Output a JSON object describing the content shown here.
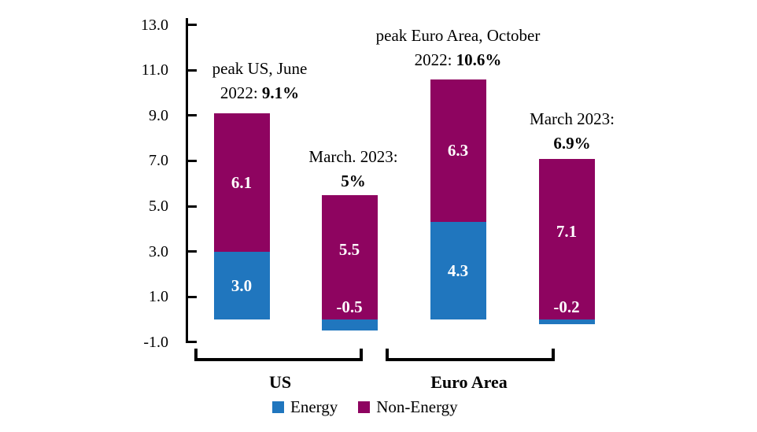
{
  "chart_data": {
    "type": "bar",
    "stacked": true,
    "ylim": [
      -1.0,
      13.0
    ],
    "ytick_values": [
      13.0,
      11.0,
      9.0,
      7.0,
      5.0,
      3.0,
      1.0,
      -1.0
    ],
    "ytick_labels": [
      "13.0",
      "11.0",
      "9.0",
      "7.0",
      "5.0",
      "3.0",
      "1.0",
      "-1.0"
    ],
    "grid": false,
    "bar_ids": [
      "us-peak",
      "us-march-2023",
      "euro-peak",
      "euro-march-2023"
    ],
    "series": [
      {
        "name": "Energy",
        "color": "#2076BE",
        "values": [
          3.0,
          -0.5,
          4.3,
          -0.2
        ],
        "labels": [
          "3.0",
          "-0.5",
          "4.3",
          "-0.2"
        ]
      },
      {
        "name": "Non-Energy",
        "color": "#8E0460",
        "values": [
          6.1,
          5.5,
          6.3,
          7.1
        ],
        "labels": [
          "6.1",
          "5.5",
          "6.3",
          "7.1"
        ]
      }
    ],
    "totals": [
      "9.1%",
      "5%",
      "10.6%",
      "6.9%"
    ],
    "annotations": [
      {
        "line1": "peak US, June",
        "line2_prefix": "2022: ",
        "line2_bold": "9.1%"
      },
      {
        "line1": "March. 2023:",
        "line2_prefix": "",
        "line2_bold": "5%"
      },
      {
        "line1": "peak Euro Area, October",
        "line2_prefix": "2022: ",
        "line2_bold": "10.6%"
      },
      {
        "line1": "March 2023:",
        "line2_prefix": "",
        "line2_bold": "6.9%"
      }
    ],
    "groups": [
      {
        "label": "US"
      },
      {
        "label": "Euro Area"
      }
    ],
    "legend": [
      {
        "label": "Energy",
        "color": "#2076BE"
      },
      {
        "label": "Non-Energy",
        "color": "#8E0460"
      }
    ],
    "legend_position": "bottom"
  }
}
